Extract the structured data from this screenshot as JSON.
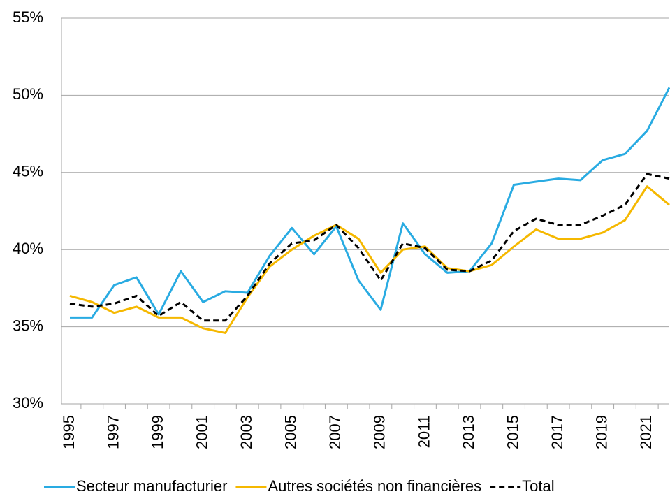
{
  "chart_data": {
    "type": "line",
    "categories": [
      "1995",
      null,
      "1997",
      null,
      "1999",
      null,
      "2001",
      null,
      "2003",
      null,
      "2005",
      null,
      "2007",
      null,
      "2009",
      null,
      "2011",
      null,
      "2013",
      null,
      "2015",
      null,
      "2017",
      null,
      "2019",
      null,
      "2021",
      null
    ],
    "series": [
      {
        "name": "Secteur manufacturier",
        "color": "#29abe2",
        "dash": false,
        "values": [
          35.6,
          35.6,
          37.7,
          38.2,
          35.8,
          38.6,
          36.6,
          37.3,
          37.2,
          39.6,
          41.4,
          39.7,
          41.5,
          38.0,
          36.1,
          41.7,
          39.7,
          38.5,
          38.6,
          40.4,
          44.2,
          44.4,
          44.6,
          44.5,
          45.8,
          46.2,
          47.7,
          50.5
        ]
      },
      {
        "name": "Autres sociétés non financières",
        "color": "#f5b800",
        "dash": false,
        "values": [
          37.0,
          36.6,
          35.9,
          36.3,
          35.6,
          35.6,
          34.9,
          34.6,
          36.9,
          38.9,
          40.0,
          40.9,
          41.6,
          40.7,
          38.5,
          40.0,
          40.2,
          38.8,
          38.6,
          39.0,
          40.2,
          41.3,
          40.7,
          40.7,
          41.1,
          41.9,
          44.1,
          42.9
        ]
      },
      {
        "name": "Total",
        "color": "#000000",
        "dash": true,
        "values": [
          36.5,
          36.3,
          36.5,
          37.0,
          35.7,
          36.6,
          35.4,
          35.4,
          37.0,
          39.1,
          40.4,
          40.6,
          41.6,
          40.1,
          38.0,
          40.4,
          40.1,
          38.7,
          38.6,
          39.3,
          41.2,
          42.0,
          41.6,
          41.6,
          42.2,
          42.9,
          44.9,
          44.6
        ]
      }
    ],
    "ylim": [
      30,
      55
    ],
    "yticks": [
      {
        "value": 30,
        "label": "30%"
      },
      {
        "value": 35,
        "label": "35%"
      },
      {
        "value": 40,
        "label": "40%"
      },
      {
        "value": 45,
        "label": "45%"
      },
      {
        "value": 50,
        "label": "50%"
      },
      {
        "value": 55,
        "label": "55%"
      }
    ],
    "grid": true,
    "legend": "bottom"
  }
}
